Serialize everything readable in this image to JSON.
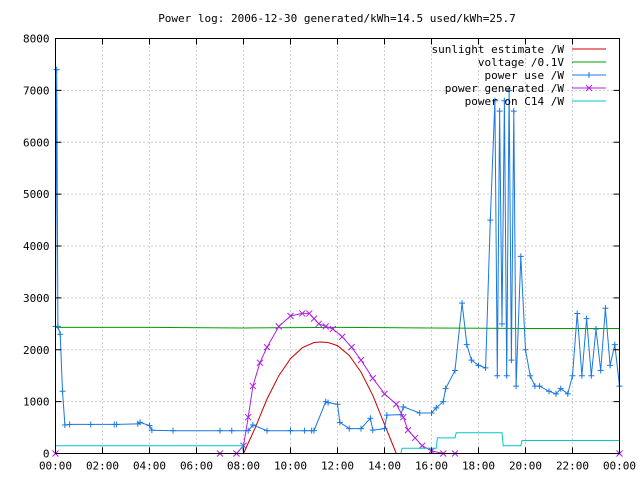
{
  "chart_data": {
    "type": "line",
    "title": "Power log: 2006-12-30 generated/kWh=14.5 used/kWh=25.7",
    "xlabel": "",
    "ylabel": "",
    "x_ticks": [
      "00:00",
      "02:00",
      "04:00",
      "06:00",
      "08:00",
      "10:00",
      "12:00",
      "14:00",
      "16:00",
      "18:00",
      "20:00",
      "22:00",
      "00:00"
    ],
    "y_ticks": [
      "0",
      "1000",
      "2000",
      "3000",
      "4000",
      "5000",
      "6000",
      "7000",
      "8000"
    ],
    "xlim_hours": [
      0,
      24
    ],
    "ylim": [
      0,
      8000
    ],
    "grid": true,
    "legend_position": "top-right",
    "series": [
      {
        "name": "sunlight estimate /W",
        "color": "#cc0000",
        "marker": "none",
        "x_hours": [
          8.0,
          8.5,
          9.0,
          9.5,
          10.0,
          10.5,
          11.0,
          11.3,
          11.6,
          12.0,
          12.5,
          13.0,
          13.5,
          14.0,
          14.5
        ],
        "values": [
          0,
          500,
          1050,
          1500,
          1830,
          2040,
          2140,
          2150,
          2140,
          2080,
          1890,
          1570,
          1120,
          560,
          0
        ]
      },
      {
        "name": "voltage /0.1V",
        "color": "#00a000",
        "marker": "none",
        "x_hours": [
          0,
          4,
          8,
          12,
          16,
          20,
          24
        ],
        "values": [
          2430,
          2430,
          2420,
          2430,
          2420,
          2410,
          2410
        ]
      },
      {
        "name": "power use /W",
        "color": "#1a78e0",
        "marker": "plus",
        "x_hours": [
          0.0,
          0.05,
          0.1,
          0.2,
          0.3,
          0.4,
          0.6,
          1.5,
          2.5,
          2.6,
          3.5,
          3.6,
          4.0,
          4.1,
          5.0,
          7.0,
          7.5,
          8.2,
          8.4,
          9.0,
          10.0,
          10.6,
          10.9,
          11.0,
          11.5,
          11.6,
          12.0,
          12.1,
          12.5,
          13.0,
          13.4,
          13.5,
          14.0,
          14.1,
          14.7,
          14.8,
          15.5,
          16.0,
          16.2,
          16.5,
          16.6,
          17.0,
          17.3,
          17.5,
          17.7,
          18.0,
          18.3,
          18.5,
          18.7,
          18.8,
          18.9,
          19.0,
          19.1,
          19.2,
          19.3,
          19.4,
          19.5,
          19.6,
          19.8,
          20.0,
          20.2,
          20.4,
          20.6,
          21.0,
          21.3,
          21.5,
          21.8,
          22.0,
          22.2,
          22.4,
          22.6,
          22.8,
          23.0,
          23.2,
          23.4,
          23.6,
          23.8,
          24.0
        ],
        "values": [
          2450,
          7400,
          2450,
          2300,
          1200,
          550,
          560,
          560,
          560,
          560,
          570,
          600,
          540,
          450,
          440,
          440,
          440,
          440,
          550,
          440,
          440,
          440,
          440,
          440,
          1000,
          980,
          950,
          600,
          480,
          480,
          680,
          450,
          480,
          740,
          750,
          900,
          780,
          780,
          880,
          1000,
          1250,
          1600,
          2900,
          2100,
          1800,
          1700,
          1650,
          4500,
          6800,
          1500,
          6600,
          2500,
          6800,
          1500,
          7000,
          1800,
          6600,
          1300,
          3800,
          2000,
          1500,
          1300,
          1300,
          1200,
          1150,
          1250,
          1150,
          1500,
          2700,
          1500,
          2600,
          1500,
          2400,
          1600,
          2800,
          1700,
          2100,
          1300
        ]
      },
      {
        "name": "power generated /W",
        "color": "#b020e0",
        "marker": "cross",
        "x_hours": [
          0,
          7.0,
          7.7,
          8.0,
          8.2,
          8.4,
          8.7,
          9.0,
          9.5,
          10.0,
          10.5,
          10.8,
          11.0,
          11.2,
          11.5,
          11.8,
          12.2,
          12.6,
          13.0,
          13.5,
          14.0,
          14.5,
          14.8,
          15.0,
          15.3,
          15.6,
          16.0,
          16.5,
          17.0,
          24.0
        ],
        "values": [
          0,
          0,
          0,
          150,
          700,
          1300,
          1750,
          2050,
          2450,
          2650,
          2700,
          2700,
          2600,
          2500,
          2450,
          2400,
          2250,
          2050,
          1800,
          1450,
          1150,
          950,
          700,
          450,
          300,
          150,
          50,
          0,
          0,
          0
        ]
      },
      {
        "name": "power on C14 /W",
        "color": "#00c8c8",
        "marker": "none",
        "x_hours": [
          0,
          7.95,
          8.0,
          14.7,
          14.75,
          16.2,
          16.25,
          17.0,
          17.05,
          19.0,
          19.05,
          19.8,
          19.85,
          23.6,
          23.65,
          24.0
        ],
        "values": [
          150,
          150,
          0,
          0,
          100,
          100,
          300,
          300,
          400,
          400,
          150,
          150,
          250,
          250,
          250,
          250
        ]
      }
    ]
  }
}
